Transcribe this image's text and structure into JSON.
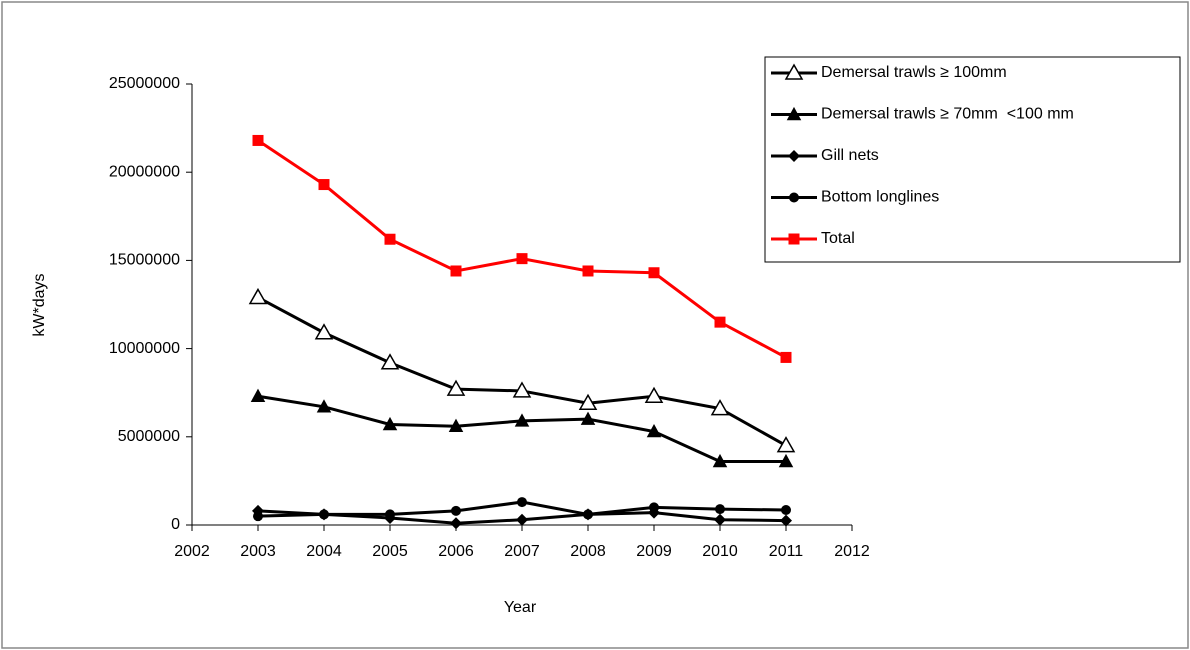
{
  "chart_data": {
    "type": "line",
    "x_label": "Year",
    "y_label": "kW*days",
    "x": [
      2003,
      2004,
      2005,
      2006,
      2007,
      2008,
      2009,
      2010,
      2011
    ],
    "series": [
      {
        "name": "Demersal trawls ≥ 100mm",
        "color": "#000000",
        "marker": "triangle-open",
        "values": [
          12900000,
          10900000,
          9200000,
          7700000,
          7600000,
          6900000,
          7300000,
          6600000,
          4500000
        ]
      },
      {
        "name": "Demersal trawls ≥ 70mm  <100 mm",
        "color": "#000000",
        "marker": "triangle",
        "values": [
          7300000,
          6700000,
          5700000,
          5600000,
          5900000,
          6000000,
          5300000,
          3600000,
          3600000
        ]
      },
      {
        "name": "Gill nets",
        "color": "#000000",
        "marker": "diamond",
        "values": [
          800000,
          600000,
          400000,
          100000,
          300000,
          600000,
          700000,
          300000,
          250000
        ]
      },
      {
        "name": "Bottom longlines",
        "color": "#000000",
        "marker": "circle",
        "values": [
          500000,
          600000,
          600000,
          800000,
          1300000,
          600000,
          1000000,
          900000,
          850000
        ]
      },
      {
        "name": "Total",
        "color": "#ff0000",
        "marker": "square",
        "values": [
          21800000,
          19300000,
          16200000,
          14400000,
          15100000,
          14400000,
          14300000,
          11500000,
          9500000
        ]
      }
    ],
    "xlim": [
      2002,
      2012
    ],
    "xticks": [
      2002,
      2003,
      2004,
      2005,
      2006,
      2007,
      2008,
      2009,
      2010,
      2011,
      2012
    ],
    "ylim": [
      0,
      25000000
    ],
    "yticks": [
      0,
      5000000,
      10000000,
      15000000,
      20000000,
      25000000
    ],
    "grid": false,
    "legend": "top-right"
  }
}
